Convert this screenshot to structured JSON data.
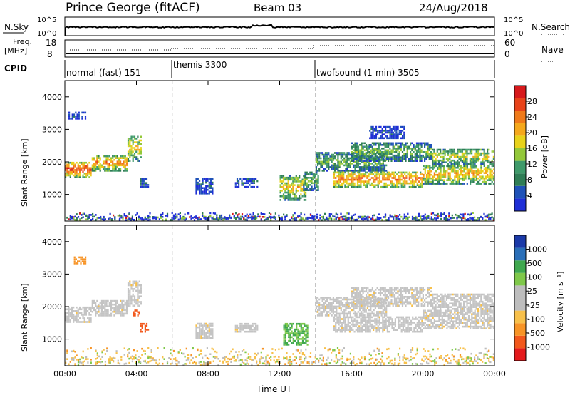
{
  "header": {
    "station": "Prince George (fitACF)",
    "beam": "Beam 03",
    "date": "24/Aug/2018"
  },
  "top_panels": {
    "nsky_label": "N.Sky",
    "nsearch_label": "N.Search",
    "ticks_log_top": "10^5",
    "ticks_log_bottom": "10^0",
    "freq_label_1": "Freq.",
    "freq_label_2": "[MHz]",
    "freq_ticks": [
      "18",
      "8"
    ],
    "nave_label": "Nave",
    "nave_ticks": [
      "60",
      "0"
    ],
    "cpid_label": "CPID"
  },
  "modes": [
    {
      "label": "normal (fast) 151",
      "start_hour": 0
    },
    {
      "label": "themis 3300",
      "start_hour": 6
    },
    {
      "label": "twofsound (1-min) 3505",
      "start_hour": 14
    }
  ],
  "colors": {
    "power_scale": [
      "#1f2fd6",
      "#1f52b8",
      "#2f7d55",
      "#3f9a6a",
      "#93c83a",
      "#e8d21a",
      "#f5a81c",
      "#f07a1a",
      "#e8431a",
      "#d7191c"
    ],
    "velocity_scale": [
      "#e41a1c",
      "#f2581c",
      "#f79426",
      "#f7c04a",
      "#bdbdbd",
      "#bdbdbd",
      "#7fc84a",
      "#3fa84f",
      "#2a6fb8",
      "#1b3aa8"
    ],
    "gray_dash": "#b0b0b0"
  },
  "chart_data": [
    {
      "type": "heatmap",
      "name_hint": "power",
      "ylabel": "Slant Range [km]",
      "xlabel": "",
      "x_ticks": [
        "00:00",
        "04:00",
        "08:00",
        "12:00",
        "16:00",
        "20:00",
        "00:00"
      ],
      "y_ticks": [
        "1000",
        "2000",
        "3000",
        "4000"
      ],
      "xlim_hours": [
        0,
        24
      ],
      "ylim_km": [
        180,
        4500
      ],
      "colorbar_label": "Power [dB]",
      "colorbar_ticks": [
        "4",
        "8",
        "12",
        "16",
        "20",
        "24",
        "28"
      ],
      "colorbar_range": [
        0,
        30
      ],
      "mode_boundaries_hours": [
        6,
        14
      ],
      "bands": [
        {
          "x0": 0.0,
          "x1": 1.5,
          "y0": 1500,
          "y1": 2000,
          "level": 0.65
        },
        {
          "x0": 1.5,
          "x1": 3.5,
          "y0": 1700,
          "y1": 2200,
          "level": 0.55
        },
        {
          "x0": 3.5,
          "x1": 4.3,
          "y0": 2000,
          "y1": 2800,
          "level": 0.45
        },
        {
          "x0": 0.2,
          "x1": 1.2,
          "y0": 3300,
          "y1": 3550,
          "level": 0.1
        },
        {
          "x0": 4.2,
          "x1": 4.7,
          "y0": 1200,
          "y1": 1500,
          "level": 0.15
        },
        {
          "x0": 7.3,
          "x1": 8.3,
          "y0": 1000,
          "y1": 1500,
          "level": 0.12
        },
        {
          "x0": 9.5,
          "x1": 10.8,
          "y0": 1200,
          "y1": 1500,
          "level": 0.12
        },
        {
          "x0": 12.0,
          "x1": 13.5,
          "y0": 800,
          "y1": 1600,
          "level": 0.45
        },
        {
          "x0": 13.3,
          "x1": 14.2,
          "y0": 1100,
          "y1": 1700,
          "level": 0.3
        },
        {
          "x0": 14.0,
          "x1": 18.0,
          "y0": 1700,
          "y1": 2300,
          "level": 0.3
        },
        {
          "x0": 15.0,
          "x1": 20.0,
          "y0": 1200,
          "y1": 1700,
          "level": 0.6
        },
        {
          "x0": 20.0,
          "x1": 24.0,
          "y0": 1300,
          "y1": 1900,
          "level": 0.5
        },
        {
          "x0": 16.0,
          "x1": 20.5,
          "y0": 2000,
          "y1": 2600,
          "level": 0.3
        },
        {
          "x0": 20.5,
          "x1": 24.0,
          "y0": 1900,
          "y1": 2400,
          "level": 0.4
        },
        {
          "x0": 17.0,
          "x1": 19.0,
          "y0": 2700,
          "y1": 3100,
          "level": 0.1
        }
      ],
      "noise_floor_km": [
        180,
        400
      ]
    },
    {
      "type": "heatmap",
      "name_hint": "velocity",
      "ylabel": "Slant Range [km]",
      "xlabel": "Time UT",
      "x_ticks": [
        "00:00",
        "04:00",
        "08:00",
        "12:00",
        "16:00",
        "20:00",
        "00:00"
      ],
      "y_ticks": [
        "1000",
        "2000",
        "3000",
        "4000"
      ],
      "xlim_hours": [
        0,
        24
      ],
      "ylim_km": [
        180,
        4500
      ],
      "colorbar_label": "Velocity [m s⁻¹]",
      "colorbar_ticks": [
        "-1000",
        "-500",
        "-100",
        "-25",
        "25",
        "100",
        "500",
        "1000"
      ],
      "colorbar_range": [
        -1200,
        1200
      ],
      "mode_boundaries_hours": [
        6,
        14
      ],
      "bands": [
        {
          "x0": 0.0,
          "x1": 1.5,
          "y0": 1500,
          "y1": 2000,
          "vel": 0
        },
        {
          "x0": 1.5,
          "x1": 3.5,
          "y0": 1700,
          "y1": 2200,
          "vel": 0
        },
        {
          "x0": 3.5,
          "x1": 4.3,
          "y0": 2000,
          "y1": 2800,
          "vel": 0
        },
        {
          "x0": 0.5,
          "x1": 1.2,
          "y0": 3300,
          "y1": 3550,
          "vel": -300
        },
        {
          "x0": 4.2,
          "x1": 4.7,
          "y0": 1200,
          "y1": 1500,
          "vel": -600
        },
        {
          "x0": 3.8,
          "x1": 4.2,
          "y0": 1700,
          "y1": 1900,
          "vel": -600
        },
        {
          "x0": 7.3,
          "x1": 8.3,
          "y0": 1000,
          "y1": 1500,
          "vel": 0
        },
        {
          "x0": 9.5,
          "x1": 10.8,
          "y0": 1200,
          "y1": 1500,
          "vel": 0
        },
        {
          "x0": 12.2,
          "x1": 13.6,
          "y0": 800,
          "y1": 1500,
          "vel": 300
        },
        {
          "x0": 14.0,
          "x1": 18.0,
          "y0": 1700,
          "y1": 2300,
          "vel": 0
        },
        {
          "x0": 15.0,
          "x1": 20.0,
          "y0": 1200,
          "y1": 1700,
          "vel": 0
        },
        {
          "x0": 20.0,
          "x1": 24.0,
          "y0": 1300,
          "y1": 1900,
          "vel": 0
        },
        {
          "x0": 16.0,
          "x1": 20.5,
          "y0": 2000,
          "y1": 2600,
          "vel": 0
        },
        {
          "x0": 20.5,
          "x1": 24.0,
          "y0": 1900,
          "y1": 2400,
          "vel": 0
        }
      ],
      "noise_floor_km": [
        180,
        700
      ]
    }
  ]
}
